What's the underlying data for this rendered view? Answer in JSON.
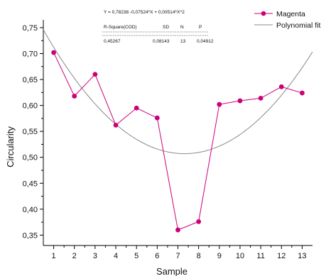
{
  "chart_data": {
    "type": "line",
    "title": "",
    "xlabel": "Sample",
    "ylabel": "Circularity",
    "x": [
      1,
      2,
      3,
      4,
      5,
      6,
      7,
      8,
      9,
      10,
      11,
      12,
      13
    ],
    "xticks": [
      "1",
      "2",
      "3",
      "4",
      "5",
      "6",
      "7",
      "8",
      "9",
      "10",
      "11",
      "12",
      "13"
    ],
    "xlim": [
      0.5,
      13.5
    ],
    "yticks": [
      "0,35",
      "0,40",
      "0,45",
      "0,50",
      "0,55",
      "0,60",
      "0,65",
      "0,70",
      "0,75"
    ],
    "ylim": [
      0.33,
      0.765
    ],
    "grid": false,
    "legend_position": "top-right",
    "series": [
      {
        "name": "Magenta",
        "kind": "line+markers",
        "color": "#cc0077",
        "values": [
          0.702,
          0.618,
          0.66,
          0.562,
          0.595,
          0.576,
          0.36,
          0.376,
          0.602,
          0.609,
          0.614,
          0.636,
          0.624
        ]
      },
      {
        "name": "Polynomial fit",
        "kind": "line",
        "color": "#888888",
        "equation": {
          "a": 0.78238,
          "b": -0.07524,
          "c": 0.00514
        }
      }
    ],
    "fit_box": {
      "equation": "Y = 0,78238 -0,07524*X + 0,00514*X^2",
      "headers": [
        "R-Square(COD)",
        "SD",
        "N",
        "P"
      ],
      "values": [
        "0,45267",
        "0,08143",
        "13",
        "0,04912"
      ]
    }
  }
}
